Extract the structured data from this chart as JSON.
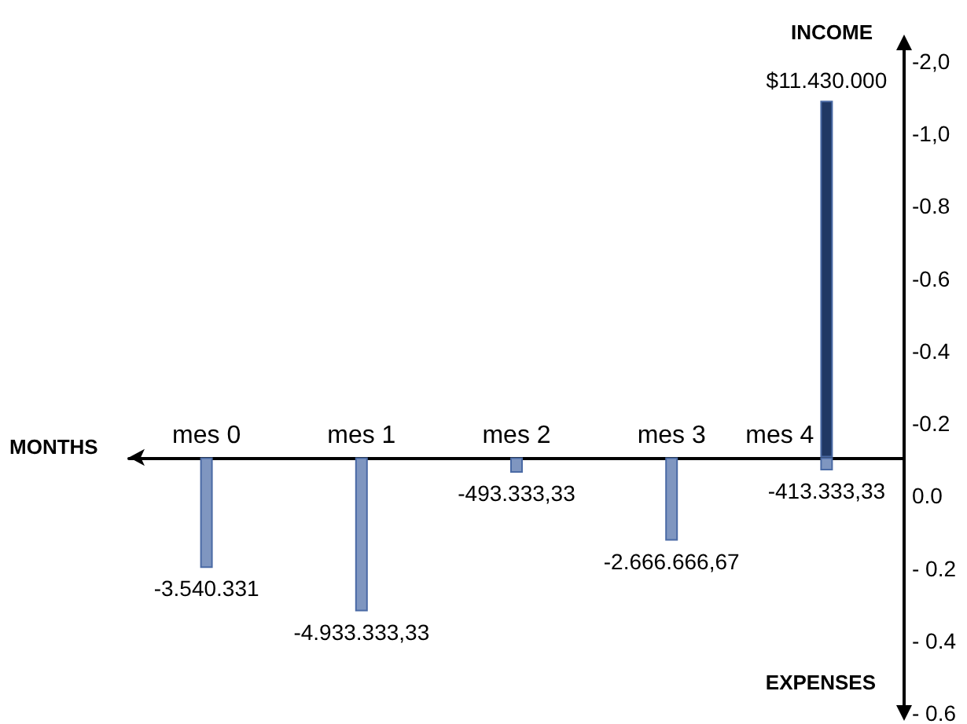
{
  "chart_data": {
    "type": "bar",
    "xlabel": "MONTHS",
    "ylabel": "INCOME",
    "annotations": [
      "EXPENSES",
      "-2,0",
      "-1,0",
      "-0.8",
      "-0.6",
      "-0.4",
      "-0.2",
      "0.0",
      "- 0.2",
      "- 0.4",
      "- 0.6"
    ],
    "categories": [
      "mes 0",
      "mes 1",
      "mes 2",
      "mes 3",
      "mes 4"
    ],
    "series": [
      {
        "color": "#7f96c0",
        "values": [
          -3540331,
          -4933333.33,
          -493333.33,
          -2666666.67,
          -413333.33
        ],
        "value_labels": [
          "-3.540.331",
          "-4.933.333,33",
          "-493.333,33",
          "-2.666.666,67",
          "-413.333,33"
        ]
      },
      {
        "color": "#203864",
        "values": [
          null,
          null,
          null,
          null,
          11430000
        ],
        "value_labels": [
          null,
          null,
          null,
          null,
          "$11.430.000"
        ]
      }
    ],
    "grid": false
  }
}
